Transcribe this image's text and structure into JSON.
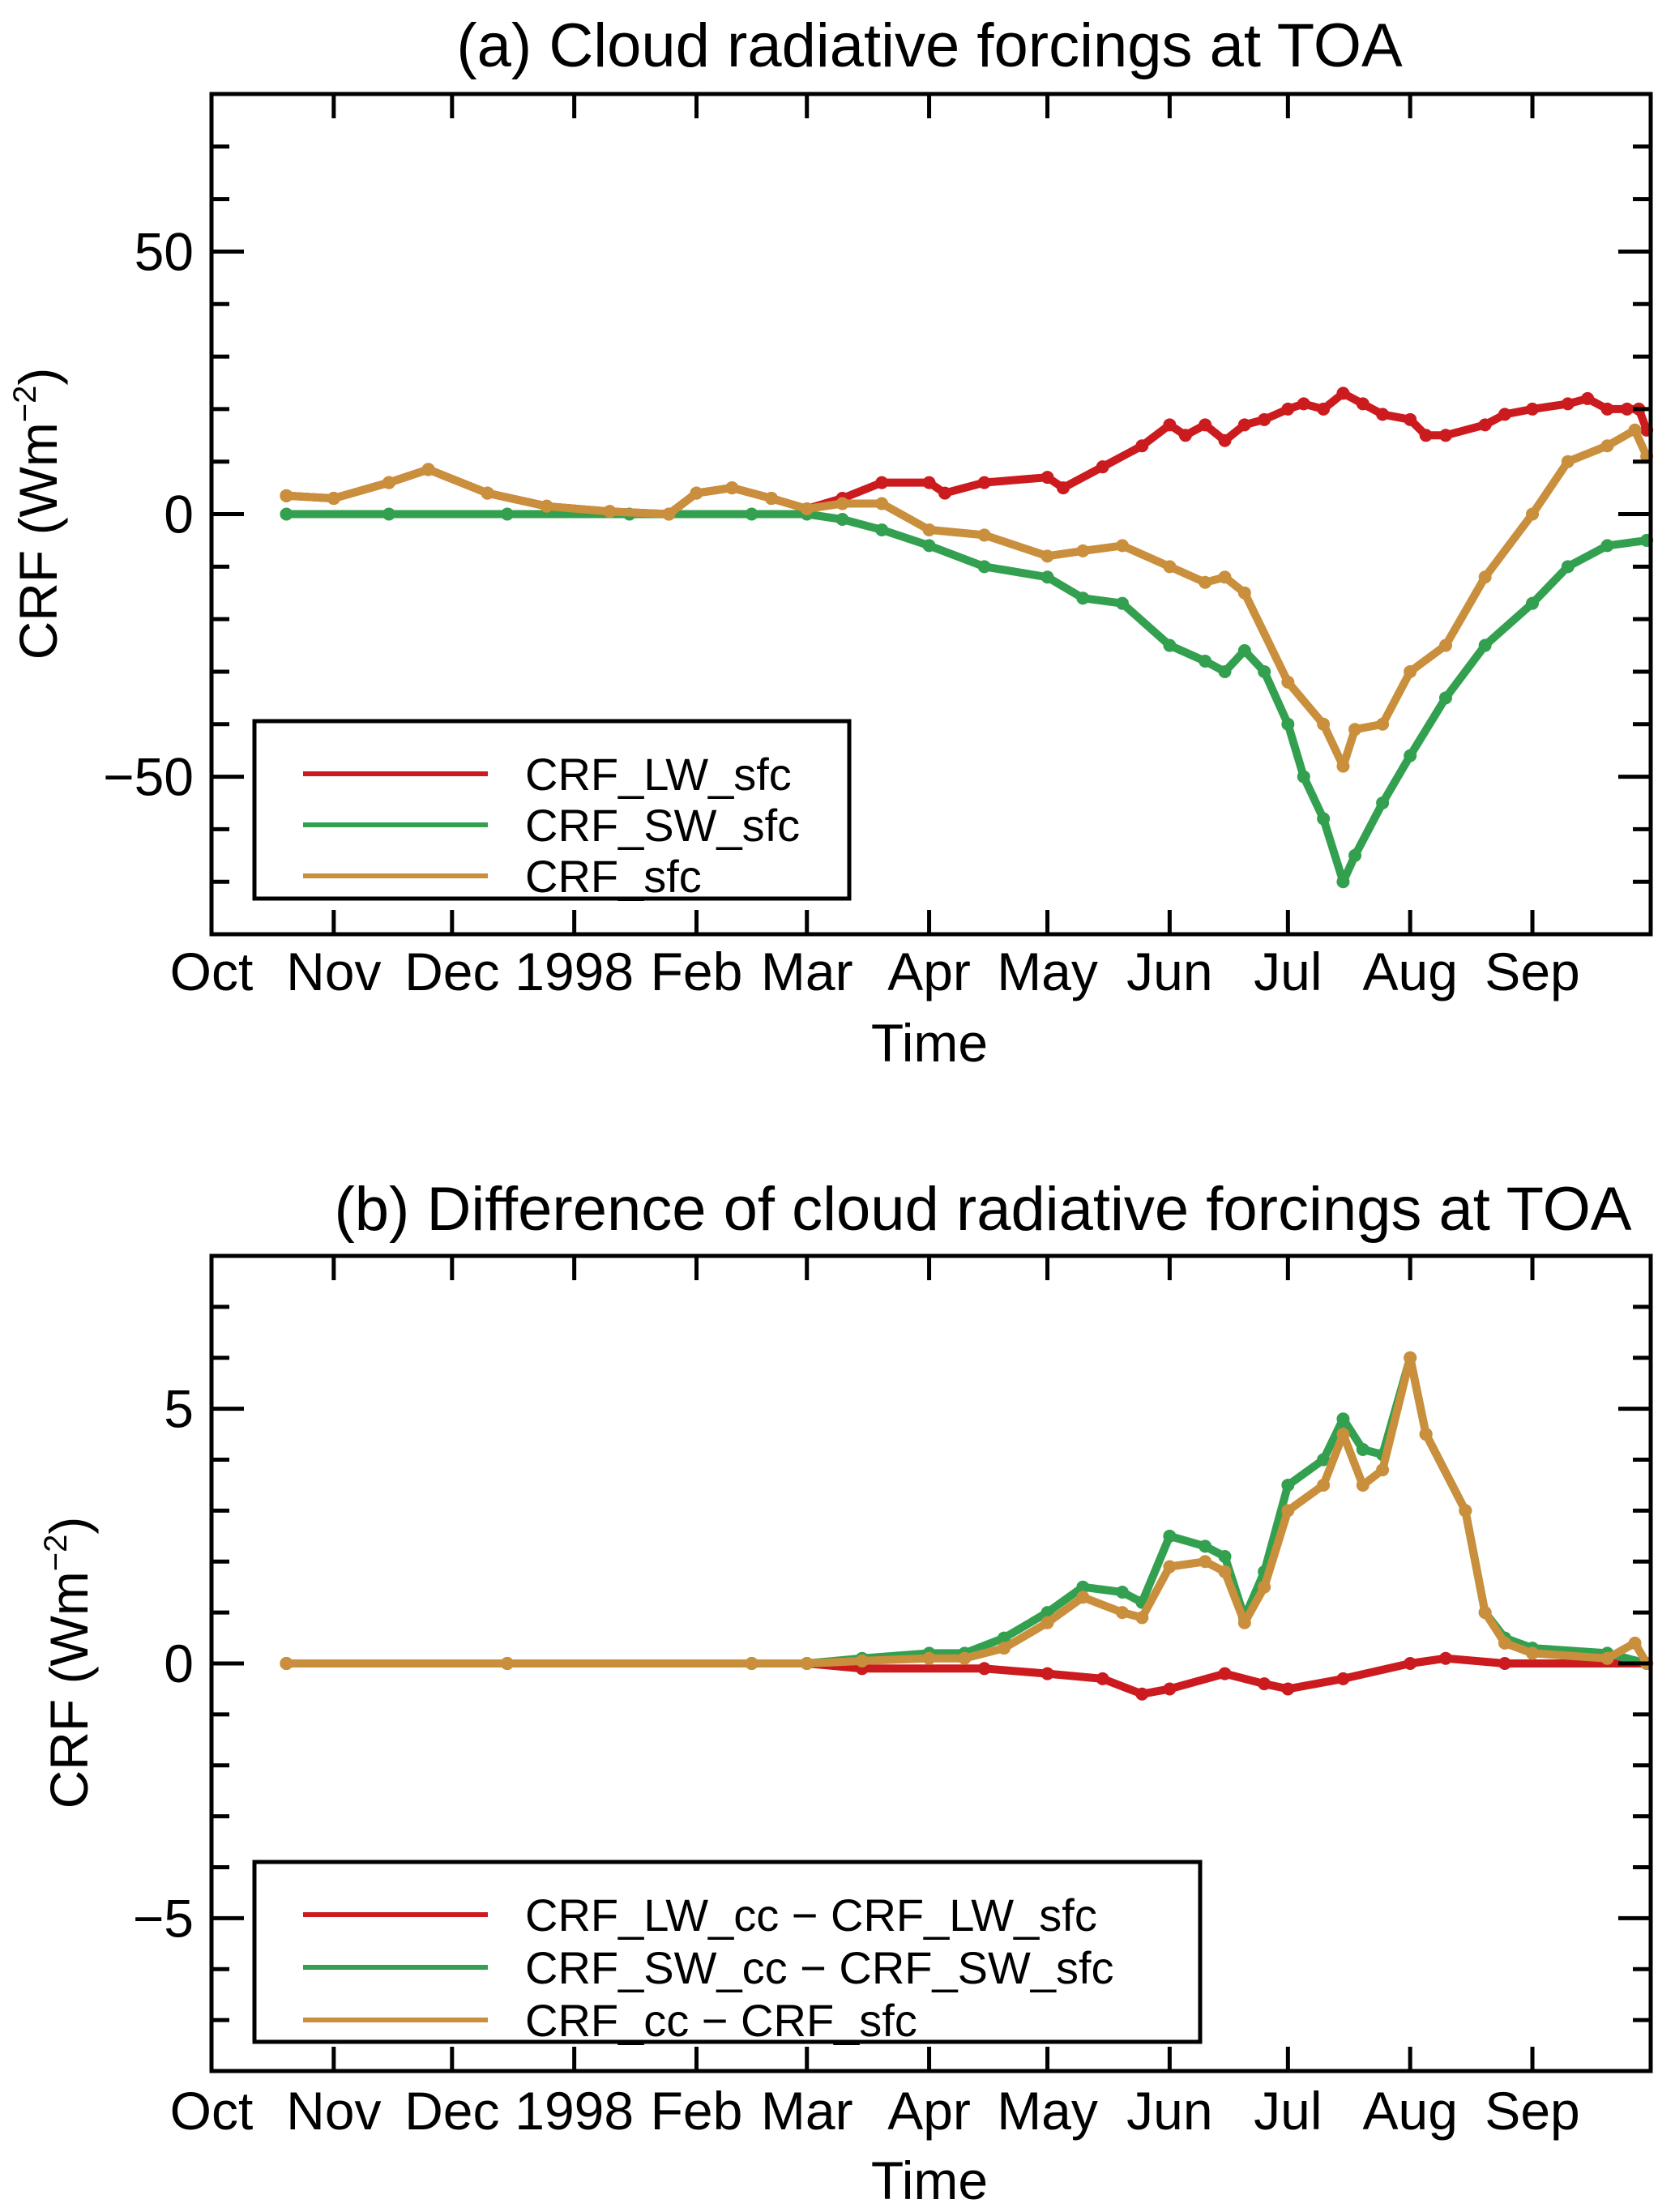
{
  "colors": {
    "lw": "#cc1b1f",
    "sw": "#33a050",
    "total": "#c98f3c"
  },
  "chart_data": [
    {
      "type": "line",
      "title": "(a) Cloud radiative forcings at TOA",
      "xlabel": "Time",
      "ylabel": "CRF (Wm",
      "ylabel_sup": "−2",
      "ylabel_close": ")",
      "xlim": [
        "1997-10-01",
        "1998-10-01"
      ],
      "ylim": [
        -80,
        80
      ],
      "yticks": [
        50,
        0,
        -50
      ],
      "ytick_labels": [
        "50",
        "0",
        "−50"
      ],
      "yminor_step": 10,
      "xtick_labels": [
        "Oct",
        "Nov",
        "Dec",
        "1998",
        "Feb",
        "Mar",
        "Apr",
        "May",
        "Jun",
        "Jul",
        "Aug",
        "Sep"
      ],
      "xtick_dates": [
        "1997-10-01",
        "1997-11-01",
        "1997-12-01",
        "1998-01-01",
        "1998-02-01",
        "1998-03-01",
        "1998-04-01",
        "1998-05-01",
        "1998-06-01",
        "1998-07-01",
        "1998-08-01",
        "1998-09-01"
      ],
      "legend_position": "bottom-left",
      "series": [
        {
          "name": "CRF_LW_sfc",
          "color_key": "lw",
          "x": [
            "1997-10-20",
            "1997-11-01",
            "1997-11-15",
            "1997-11-25",
            "1997-12-10",
            "1997-12-25",
            "1998-01-10",
            "1998-01-25",
            "1998-02-01",
            "1998-02-10",
            "1998-02-20",
            "1998-03-01",
            "1998-03-10",
            "1998-03-20",
            "1998-04-01",
            "1998-04-05",
            "1998-04-15",
            "1998-05-01",
            "1998-05-05",
            "1998-05-15",
            "1998-05-25",
            "1998-06-01",
            "1998-06-05",
            "1998-06-10",
            "1998-06-15",
            "1998-06-20",
            "1998-06-25",
            "1998-07-01",
            "1998-07-05",
            "1998-07-10",
            "1998-07-15",
            "1998-07-20",
            "1998-07-25",
            "1998-08-01",
            "1998-08-05",
            "1998-08-10",
            "1998-08-20",
            "1998-08-25",
            "1998-09-01",
            "1998-09-10",
            "1998-09-15",
            "1998-09-20",
            "1998-09-25",
            "1998-09-28",
            "1998-09-30"
          ],
          "y": [
            3.5,
            3,
            6,
            8.5,
            4,
            1.5,
            0.5,
            0,
            4,
            5,
            3,
            1,
            3,
            6,
            6,
            4,
            6,
            7,
            5,
            9,
            13,
            17,
            15,
            17,
            14,
            17,
            18,
            20,
            21,
            20,
            23,
            21,
            19,
            18,
            15,
            15,
            17,
            19,
            20,
            21,
            22,
            20,
            20,
            20,
            16
          ]
        },
        {
          "name": "CRF_SW_sfc",
          "color_key": "sw",
          "x": [
            "1997-10-20",
            "1997-11-15",
            "1997-12-15",
            "1998-01-15",
            "1998-02-15",
            "1998-03-01",
            "1998-03-10",
            "1998-03-20",
            "1998-04-01",
            "1998-04-15",
            "1998-05-01",
            "1998-05-10",
            "1998-05-20",
            "1998-06-01",
            "1998-06-10",
            "1998-06-15",
            "1998-06-20",
            "1998-06-25",
            "1998-07-01",
            "1998-07-05",
            "1998-07-10",
            "1998-07-15",
            "1998-07-18",
            "1998-07-25",
            "1998-08-01",
            "1998-08-10",
            "1998-08-20",
            "1998-09-01",
            "1998-09-10",
            "1998-09-20",
            "1998-09-30"
          ],
          "y": [
            0,
            0,
            0,
            0,
            0,
            0,
            -1,
            -3,
            -6,
            -10,
            -12,
            -16,
            -17,
            -25,
            -28,
            -30,
            -26,
            -30,
            -40,
            -50,
            -58,
            -70,
            -65,
            -55,
            -46,
            -35,
            -25,
            -17,
            -10,
            -6,
            -5
          ]
        },
        {
          "name": "CRF_sfc",
          "color_key": "total",
          "x": [
            "1997-10-20",
            "1997-11-01",
            "1997-11-15",
            "1997-11-25",
            "1997-12-10",
            "1997-12-25",
            "1998-01-10",
            "1998-01-25",
            "1998-02-01",
            "1998-02-10",
            "1998-02-20",
            "1998-03-01",
            "1998-03-10",
            "1998-03-20",
            "1998-04-01",
            "1998-04-15",
            "1998-05-01",
            "1998-05-10",
            "1998-05-20",
            "1998-06-01",
            "1998-06-10",
            "1998-06-15",
            "1998-06-20",
            "1998-07-01",
            "1998-07-10",
            "1998-07-15",
            "1998-07-18",
            "1998-07-25",
            "1998-08-01",
            "1998-08-10",
            "1998-08-20",
            "1998-09-01",
            "1998-09-10",
            "1998-09-20",
            "1998-09-27",
            "1998-09-30"
          ],
          "y": [
            3.5,
            3,
            6,
            8.5,
            4,
            1.5,
            0.5,
            0,
            4,
            5,
            3,
            1,
            2,
            2,
            -3,
            -4,
            -8,
            -7,
            -6,
            -10,
            -13,
            -12,
            -15,
            -32,
            -40,
            -48,
            -41,
            -40,
            -30,
            -25,
            -12,
            0,
            10,
            13,
            16,
            11
          ]
        }
      ]
    },
    {
      "type": "line",
      "title": "(b) Difference of cloud radiative forcings at TOA",
      "xlabel": "Time",
      "ylabel": "CRF (Wm",
      "ylabel_sup": "−2",
      "ylabel_close": ")",
      "xlim": [
        "1997-10-01",
        "1998-10-01"
      ],
      "ylim": [
        -8,
        8
      ],
      "yticks": [
        5,
        0,
        -5
      ],
      "ytick_labels": [
        "5",
        "0",
        "−5"
      ],
      "yminor_step": 1,
      "xtick_labels": [
        "Oct",
        "Nov",
        "Dec",
        "1998",
        "Feb",
        "Mar",
        "Apr",
        "May",
        "Jun",
        "Jul",
        "Aug",
        "Sep"
      ],
      "xtick_dates": [
        "1997-10-01",
        "1997-11-01",
        "1997-12-01",
        "1998-01-01",
        "1998-02-01",
        "1998-03-01",
        "1998-04-01",
        "1998-05-01",
        "1998-06-01",
        "1998-07-01",
        "1998-08-01",
        "1998-09-01"
      ],
      "legend_position": "bottom-left",
      "series": [
        {
          "name": "CRF_LW_cc − CRF_LW_sfc",
          "color_key": "lw",
          "x": [
            "1997-10-20",
            "1997-12-15",
            "1998-02-15",
            "1998-03-01",
            "1998-03-15",
            "1998-04-15",
            "1998-05-01",
            "1998-05-15",
            "1998-05-25",
            "1998-06-01",
            "1998-06-15",
            "1998-06-25",
            "1998-07-01",
            "1998-07-15",
            "1998-08-01",
            "1998-08-10",
            "1998-08-25",
            "1998-09-30"
          ],
          "y": [
            0,
            0,
            0,
            0,
            -0.1,
            -0.1,
            -0.2,
            -0.3,
            -0.6,
            -0.5,
            -0.2,
            -0.4,
            -0.5,
            -0.3,
            0,
            0.1,
            0,
            0
          ]
        },
        {
          "name": "CRF_SW_cc − CRF_SW_sfc",
          "color_key": "sw",
          "x": [
            "1997-10-20",
            "1997-12-15",
            "1998-02-15",
            "1998-03-01",
            "1998-03-15",
            "1998-04-01",
            "1998-04-10",
            "1998-04-20",
            "1998-05-01",
            "1998-05-10",
            "1998-05-20",
            "1998-05-25",
            "1998-06-01",
            "1998-06-10",
            "1998-06-15",
            "1998-06-20",
            "1998-06-25",
            "1998-07-01",
            "1998-07-10",
            "1998-07-15",
            "1998-07-20",
            "1998-07-25",
            "1998-08-01",
            "1998-08-05",
            "1998-08-15",
            "1998-08-20",
            "1998-08-25",
            "1998-09-01",
            "1998-09-20",
            "1998-09-30"
          ],
          "y": [
            0,
            0,
            0,
            0,
            0.1,
            0.2,
            0.2,
            0.5,
            1.0,
            1.5,
            1.4,
            1.2,
            2.5,
            2.3,
            2.1,
            0.9,
            1.8,
            3.5,
            4.0,
            4.8,
            4.2,
            4.1,
            6.0,
            4.5,
            3.0,
            1.0,
            0.5,
            0.3,
            0.2,
            0
          ]
        },
        {
          "name": "CRF_cc − CRF_sfc",
          "color_key": "total",
          "x": [
            "1997-10-20",
            "1997-12-15",
            "1998-02-15",
            "1998-03-01",
            "1998-03-15",
            "1998-04-01",
            "1998-04-10",
            "1998-04-20",
            "1998-05-01",
            "1998-05-10",
            "1998-05-20",
            "1998-05-25",
            "1998-06-01",
            "1998-06-10",
            "1998-06-15",
            "1998-06-20",
            "1998-06-25",
            "1998-07-01",
            "1998-07-10",
            "1998-07-15",
            "1998-07-20",
            "1998-07-25",
            "1998-08-01",
            "1998-08-05",
            "1998-08-15",
            "1998-08-20",
            "1998-08-25",
            "1998-09-01",
            "1998-09-20",
            "1998-09-27",
            "1998-09-30"
          ],
          "y": [
            0,
            0,
            0,
            0,
            0.05,
            0.1,
            0.1,
            0.3,
            0.8,
            1.3,
            1.0,
            0.9,
            1.9,
            2.0,
            1.8,
            0.8,
            1.5,
            3.0,
            3.5,
            4.5,
            3.5,
            3.8,
            6.0,
            4.5,
            3.0,
            1.0,
            0.4,
            0.2,
            0.1,
            0.4,
            0
          ]
        }
      ]
    }
  ]
}
